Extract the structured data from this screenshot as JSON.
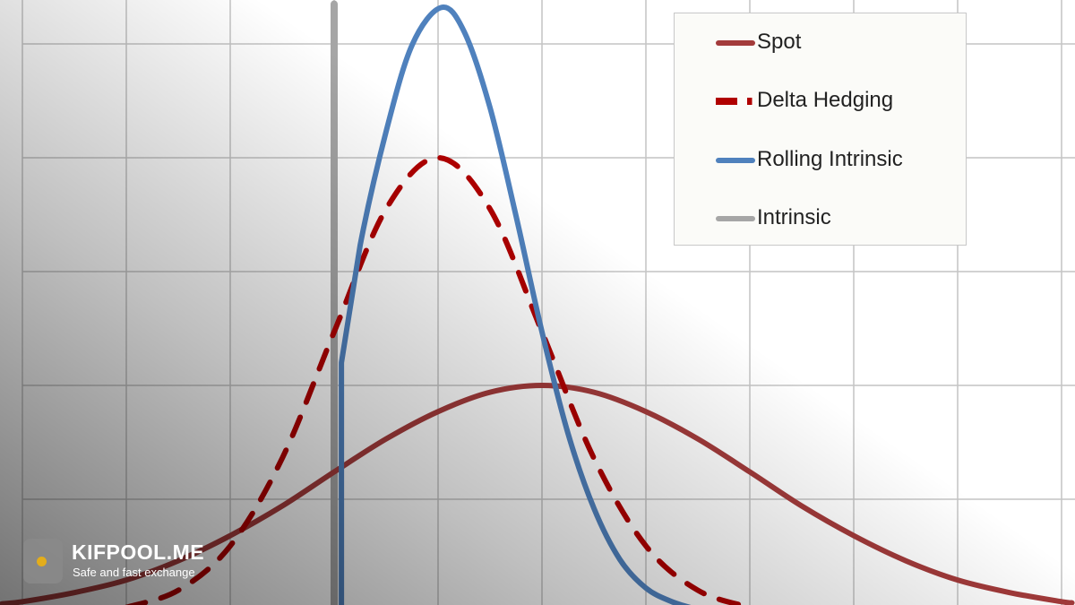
{
  "chart_data": {
    "type": "line",
    "title": "",
    "xlabel": "",
    "ylabel": "",
    "xlim": [
      -0.2,
      10.1
    ],
    "ylim": [
      0,
      5.4
    ],
    "grid": true,
    "tick_labels_shown": false,
    "legend_placement": "top-right",
    "series": [
      {
        "name": "Spot",
        "color": "#a33b3b",
        "style": "solid",
        "points": [
          [
            -0.2,
            0.08
          ],
          [
            0,
            0.1
          ],
          [
            0.5,
            0.18
          ],
          [
            1,
            0.29
          ],
          [
            1.5,
            0.46
          ],
          [
            2,
            0.68
          ],
          [
            2.5,
            0.94
          ],
          [
            3,
            1.24
          ],
          [
            3.5,
            1.53
          ],
          [
            4,
            1.77
          ],
          [
            4.5,
            1.94
          ],
          [
            5,
            2.0
          ],
          [
            5.5,
            1.94
          ],
          [
            6,
            1.77
          ],
          [
            6.5,
            1.53
          ],
          [
            7,
            1.24
          ],
          [
            7.5,
            0.94
          ],
          [
            8,
            0.68
          ],
          [
            8.5,
            0.46
          ],
          [
            9,
            0.29
          ],
          [
            9.5,
            0.18
          ],
          [
            10,
            0.1
          ],
          [
            10.1,
            0.09
          ]
        ]
      },
      {
        "name": "Delta Hedging",
        "color": "#b00000",
        "style": "dashed",
        "points": [
          [
            1,
            0.05
          ],
          [
            1.5,
            0.2
          ],
          [
            2,
            0.59
          ],
          [
            2.5,
            1.36
          ],
          [
            3,
            2.47
          ],
          [
            3.5,
            3.55
          ],
          [
            4,
            4.0
          ],
          [
            4.5,
            3.55
          ],
          [
            5,
            2.47
          ],
          [
            5.5,
            1.36
          ],
          [
            6,
            0.59
          ],
          [
            6.5,
            0.2
          ],
          [
            7,
            0.05
          ]
        ]
      },
      {
        "name": "Rolling Intrinsic",
        "color": "#4f81bd",
        "style": "solid",
        "points": [
          [
            3.07,
            0
          ],
          [
            3.07,
            2.2
          ],
          [
            3.25,
            3.23
          ],
          [
            3.5,
            4.23
          ],
          [
            3.75,
            4.99
          ],
          [
            4.03,
            5.32
          ],
          [
            4.25,
            5.11
          ],
          [
            4.5,
            4.44
          ],
          [
            4.75,
            3.49
          ],
          [
            5,
            2.47
          ],
          [
            5.25,
            1.58
          ],
          [
            5.5,
            0.92
          ],
          [
            5.75,
            0.47
          ],
          [
            6,
            0.22
          ],
          [
            6.25,
            0.1
          ],
          [
            6.5,
            0.03
          ]
        ]
      },
      {
        "name": "Intrinsic",
        "color": "#a6a6a6",
        "style": "solid",
        "points": [
          [
            3.0,
            0
          ],
          [
            3.0,
            5.35
          ]
        ]
      }
    ]
  },
  "watermark": {
    "title": "KIFPOOL.ME",
    "subtitle": "Safe and fast exchange",
    "accent_color": "#f5b50a"
  }
}
